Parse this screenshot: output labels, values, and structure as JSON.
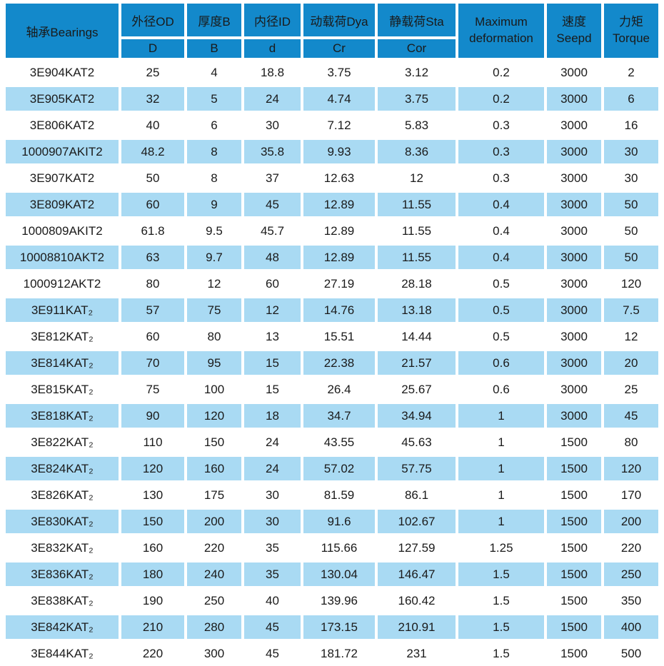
{
  "colors": {
    "header_bg": "#1389cb",
    "row_alt_bg": "#a9daf3",
    "row_bg": "#ffffff",
    "text": "#1a1a1a"
  },
  "table": {
    "header": {
      "bearings": "轴承Bearings",
      "groups": [
        {
          "top": "外径OD",
          "bottom": "D"
        },
        {
          "top": "厚度B",
          "bottom": "B"
        },
        {
          "top": "内径ID",
          "bottom": "d"
        },
        {
          "top": "动载荷Dya",
          "bottom": "Cr"
        },
        {
          "top": "静载荷Sta",
          "bottom": "Cor"
        }
      ],
      "max_deformation": {
        "line1": "Maximum",
        "line2": "deformation"
      },
      "speed": {
        "line1": "速度",
        "line2": "Seepd"
      },
      "torque": {
        "line1": "力矩",
        "line2": "Torque"
      }
    },
    "rows": [
      [
        "3E904KAT2",
        "25",
        "4",
        "18.8",
        "3.75",
        "3.12",
        "0.2",
        "3000",
        "2"
      ],
      [
        "3E905KAT2",
        "32",
        "5",
        "24",
        "4.74",
        "3.75",
        "0.2",
        "3000",
        "6"
      ],
      [
        "3E806KAT2",
        "40",
        "6",
        "30",
        "7.12",
        "5.83",
        "0.3",
        "3000",
        "16"
      ],
      [
        "1000907AKIT2",
        "48.2",
        "8",
        "35.8",
        "9.93",
        "8.36",
        "0.3",
        "3000",
        "30"
      ],
      [
        "3E907KAT2",
        "50",
        "8",
        "37",
        "12.63",
        "12",
        "0.3",
        "3000",
        "30"
      ],
      [
        "3E809KAT2",
        "60",
        "9",
        "45",
        "12.89",
        "11.55",
        "0.4",
        "3000",
        "50"
      ],
      [
        "1000809AKIT2",
        "61.8",
        "9.5",
        "45.7",
        "12.89",
        "11.55",
        "0.4",
        "3000",
        "50"
      ],
      [
        "10008810AKT2",
        "63",
        "9.7",
        "48",
        "12.89",
        "11.55",
        "0.4",
        "3000",
        "50"
      ],
      [
        "1000912AKT2",
        "80",
        "12",
        "60",
        "27.19",
        "28.18",
        "0.5",
        "3000",
        "120"
      ],
      [
        "3E911KAT₂",
        "57",
        "75",
        "12",
        "14.76",
        "13.18",
        "0.5",
        "3000",
        "7.5"
      ],
      [
        "3E812KAT₂",
        "60",
        "80",
        "13",
        "15.51",
        "14.44",
        "0.5",
        "3000",
        "12"
      ],
      [
        "3E814KAT₂",
        "70",
        "95",
        "15",
        "22.38",
        "21.57",
        "0.6",
        "3000",
        "20"
      ],
      [
        "3E815KAT₂",
        "75",
        "100",
        "15",
        "26.4",
        "25.67",
        "0.6",
        "3000",
        "25"
      ],
      [
        "3E818KAT₂",
        "90",
        "120",
        "18",
        "34.7",
        "34.94",
        "1",
        "3000",
        "45"
      ],
      [
        "3E822KAT₂",
        "110",
        "150",
        "24",
        "43.55",
        "45.63",
        "1",
        "1500",
        "80"
      ],
      [
        "3E824KAT₂",
        "120",
        "160",
        "24",
        "57.02",
        "57.75",
        "1",
        "1500",
        "120"
      ],
      [
        "3E826KAT₂",
        "130",
        "175",
        "30",
        "81.59",
        "86.1",
        "1",
        "1500",
        "170"
      ],
      [
        "3E830KAT₂",
        "150",
        "200",
        "30",
        "91.6",
        "102.67",
        "1",
        "1500",
        "200"
      ],
      [
        "3E832KAT₂",
        "160",
        "220",
        "35",
        "115.66",
        "127.59",
        "1.25",
        "1500",
        "220"
      ],
      [
        "3E836KAT₂",
        "180",
        "240",
        "35",
        "130.04",
        "146.47",
        "1.5",
        "1500",
        "250"
      ],
      [
        "3E838KAT₂",
        "190",
        "250",
        "40",
        "139.96",
        "160.42",
        "1.5",
        "1500",
        "350"
      ],
      [
        "3E842KAT₂",
        "210",
        "280",
        "45",
        "173.15",
        "210.91",
        "1.5",
        "1500",
        "400"
      ],
      [
        "3E844KAT₂",
        "220",
        "300",
        "45",
        "181.72",
        "231",
        "1.5",
        "1500",
        "500"
      ]
    ]
  }
}
